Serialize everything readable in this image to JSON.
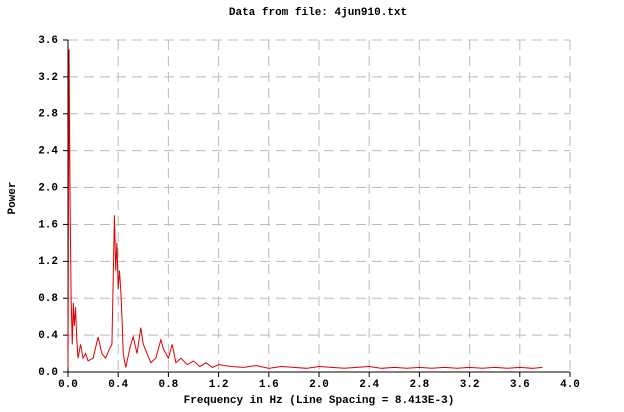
{
  "chart_data": {
    "type": "line",
    "title": "Data from file: 4jun910.txt",
    "x_label": "Frequency in Hz (Line Spacing = 8.413E-3)",
    "y_label": "Power",
    "x": [
      0,
      0.0084,
      0.0168,
      0.025,
      0.034,
      0.042,
      0.05,
      0.06,
      0.07,
      0.08,
      0.1,
      0.12,
      0.14,
      0.16,
      0.2,
      0.24,
      0.27,
      0.3,
      0.33,
      0.35,
      0.37,
      0.38,
      0.39,
      0.4,
      0.41,
      0.42,
      0.43,
      0.44,
      0.46,
      0.5,
      0.52,
      0.55,
      0.58,
      0.6,
      0.63,
      0.66,
      0.7,
      0.74,
      0.76,
      0.8,
      0.83,
      0.86,
      0.9,
      0.95,
      1.0,
      1.05,
      1.1,
      1.15,
      1.2,
      1.3,
      1.4,
      1.5,
      1.6,
      1.7,
      1.8,
      1.9,
      2.0,
      2.1,
      2.2,
      2.3,
      2.4,
      2.5,
      2.6,
      2.7,
      2.8,
      2.9,
      3.0,
      3.1,
      3.2,
      3.3,
      3.4,
      3.5,
      3.6,
      3.7,
      3.78
    ],
    "series": [
      {
        "name": "Power",
        "color": "#dd0000",
        "values": [
          0.05,
          3.5,
          1.8,
          0.8,
          0.3,
          0.75,
          0.5,
          0.7,
          0.35,
          0.15,
          0.3,
          0.15,
          0.2,
          0.12,
          0.15,
          0.38,
          0.2,
          0.15,
          0.25,
          0.3,
          1.7,
          1.1,
          1.4,
          0.9,
          1.1,
          0.9,
          0.6,
          0.2,
          0.05,
          0.3,
          0.38,
          0.2,
          0.48,
          0.3,
          0.2,
          0.1,
          0.15,
          0.35,
          0.25,
          0.15,
          0.3,
          0.1,
          0.15,
          0.08,
          0.12,
          0.06,
          0.1,
          0.05,
          0.08,
          0.06,
          0.05,
          0.07,
          0.04,
          0.06,
          0.05,
          0.04,
          0.06,
          0.05,
          0.04,
          0.05,
          0.06,
          0.04,
          0.05,
          0.04,
          0.05,
          0.04,
          0.05,
          0.04,
          0.05,
          0.04,
          0.05,
          0.04,
          0.05,
          0.04,
          0.05
        ]
      }
    ],
    "xlim": [
      0,
      4
    ],
    "ylim": [
      0,
      3.6
    ],
    "xticks": [
      {
        "value": 0,
        "label": "0.0"
      },
      {
        "value": 0.4,
        "label": "0.4"
      },
      {
        "value": 0.8,
        "label": "0.8"
      },
      {
        "value": 1.2,
        "label": "1.2"
      },
      {
        "value": 1.6,
        "label": "1.6"
      },
      {
        "value": 2,
        "label": "2.0"
      },
      {
        "value": 2.4,
        "label": "2.4"
      },
      {
        "value": 2.8,
        "label": "2.8"
      },
      {
        "value": 3.2,
        "label": "3.2"
      },
      {
        "value": 3.6,
        "label": "3.6"
      },
      {
        "value": 4,
        "label": "4.0"
      }
    ],
    "yticks": [
      {
        "value": 0,
        "label": "0.0"
      },
      {
        "value": 0.4,
        "label": "0.4"
      },
      {
        "value": 0.8,
        "label": "0.8"
      },
      {
        "value": 1.2,
        "label": "1.2"
      },
      {
        "value": 1.6,
        "label": "1.6"
      },
      {
        "value": 2,
        "label": "2.0"
      },
      {
        "value": 2.4,
        "label": "2.4"
      },
      {
        "value": 2.8,
        "label": "2.8"
      },
      {
        "value": 3.2,
        "label": "3.2"
      },
      {
        "value": 3.6,
        "label": "3.6"
      }
    ],
    "grid": true
  }
}
